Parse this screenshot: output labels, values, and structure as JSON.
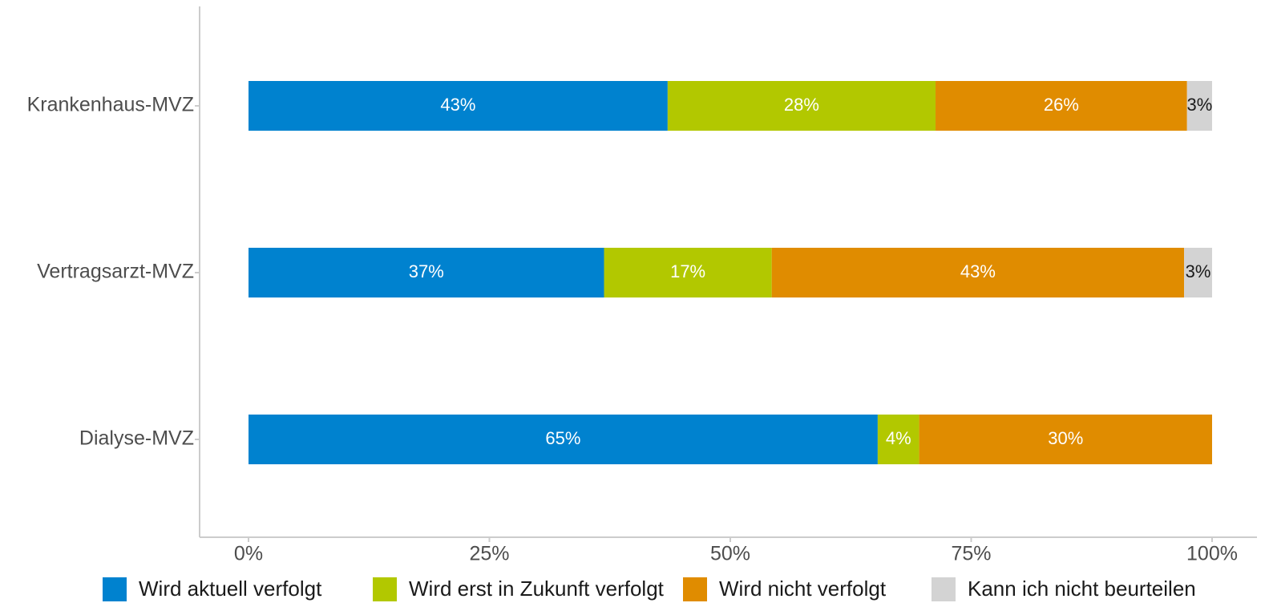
{
  "chart_data": {
    "type": "stacked_barh",
    "categories": [
      "Krankenhaus-MVZ",
      "Vertragsarzt-MVZ",
      "Dialyse-MVZ"
    ],
    "series": [
      {
        "name": "Wird aktuell verfolgt",
        "color": "#0082cf",
        "values": [
          43.5,
          36.9,
          65.3
        ],
        "value_labels": [
          "43%",
          "37%",
          "65%"
        ]
      },
      {
        "name": "Wird erst in Zukunft verfolgt",
        "color": "#b2c800",
        "values": [
          27.8,
          17.4,
          4.3
        ],
        "value_labels": [
          "28%",
          "17%",
          "4%"
        ]
      },
      {
        "name": "Wird nicht verfolgt",
        "color": "#e08c00",
        "values": [
          26.1,
          42.8,
          30.4
        ],
        "value_labels": [
          "26%",
          "43%",
          "30%"
        ]
      },
      {
        "name": "Kann ich nicht beurteilen",
        "color": "#d3d3d3",
        "values": [
          2.6,
          2.9,
          null
        ],
        "value_labels": [
          "3%",
          "3%",
          null
        ]
      }
    ],
    "xlim": [
      0,
      100
    ],
    "xticks": [
      {
        "value": 0,
        "label": "0%"
      },
      {
        "value": 25,
        "label": "25%"
      },
      {
        "value": 50,
        "label": "50%"
      },
      {
        "value": 75,
        "label": "75%"
      },
      {
        "value": 100,
        "label": "100%"
      }
    ],
    "legend": "bottom"
  }
}
